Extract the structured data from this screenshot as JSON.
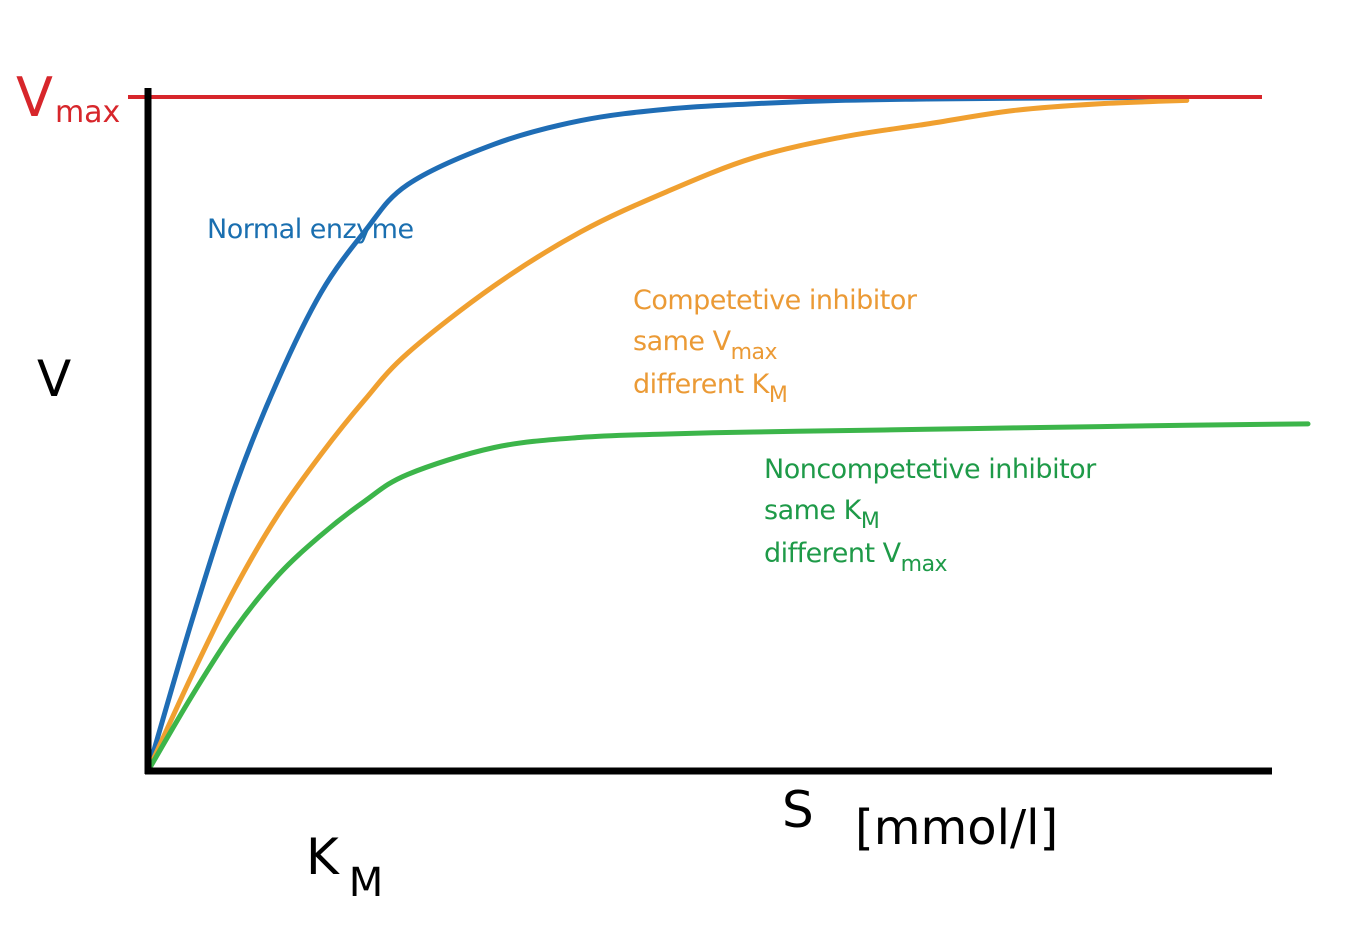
{
  "colors": {
    "normal": "#1f6db5",
    "competitive": "#f0a030",
    "noncompetitive": "#3cb54a",
    "vmax": "#d7262b",
    "axis": "#000000",
    "normal_text": "#1a6fb0",
    "competitive_text": "#eb9a35",
    "noncompetitive_text": "#1e9a48"
  },
  "labels": {
    "vmax_main": "V",
    "vmax_sub": "max",
    "y_axis": "V",
    "x_axis": "S",
    "x_unit": "[mmol/l]",
    "km_main": "K",
    "km_sub": "M",
    "normal": "Normal enzyme",
    "competitive_line1": "Competetive inhibitor",
    "competitive_line2_main": "same V",
    "competitive_line2_sub": "max",
    "competitive_line3_main": "different K",
    "competitive_line3_sub": "M",
    "noncompetitive_line1": "Noncompetetive inhibitor",
    "noncompetitive_line2_main": "same K",
    "noncompetitive_line2_sub": "M",
    "noncompetitive_line3_main": "different V",
    "noncompetitive_line3_sub": "max"
  },
  "chart_data": {
    "type": "line",
    "x": [
      0,
      0.5,
      1,
      1.5,
      2,
      2.5,
      3,
      4,
      5,
      6,
      7,
      8,
      9,
      10,
      11,
      12,
      13.4
    ],
    "xlim": [
      0,
      13.4
    ],
    "ylim": [
      0,
      1
    ],
    "vmax": 1.0,
    "series": [
      {
        "values": [
          0,
          0.22,
          0.42,
          0.58,
          0.71,
          0.8,
          0.87,
          0.93,
          0.965,
          0.982,
          0.99,
          0.995,
          0.997,
          0.998,
          0.999,
          0.999,
          0.999
        ]
      },
      {
        "values": [
          0,
          0.14,
          0.27,
          0.38,
          0.47,
          0.55,
          0.62,
          0.72,
          0.8,
          0.86,
          0.91,
          0.94,
          0.96,
          0.98,
          0.99,
          0.995,
          0.995
        ]
      },
      {
        "values": [
          0,
          0.11,
          0.21,
          0.29,
          0.35,
          0.4,
          0.44,
          0.48,
          0.495,
          0.5,
          0.503,
          0.505,
          0.507,
          0.509,
          0.511,
          0.513,
          0.515
        ]
      }
    ]
  }
}
